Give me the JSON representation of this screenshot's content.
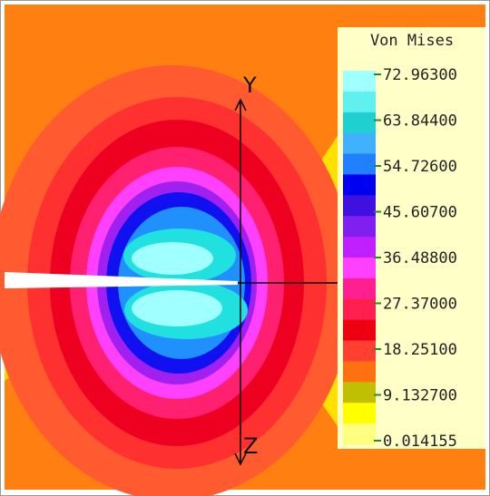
{
  "legend": {
    "title": "Von Mises",
    "ticks": [
      "72.96300",
      "63.84400",
      "54.72600",
      "45.60700",
      "36.48800",
      "27.37000",
      "18.25100",
      "9.132700",
      "0.014155"
    ]
  },
  "axes": {
    "y_label": "Y",
    "z_label": "Z"
  }
}
